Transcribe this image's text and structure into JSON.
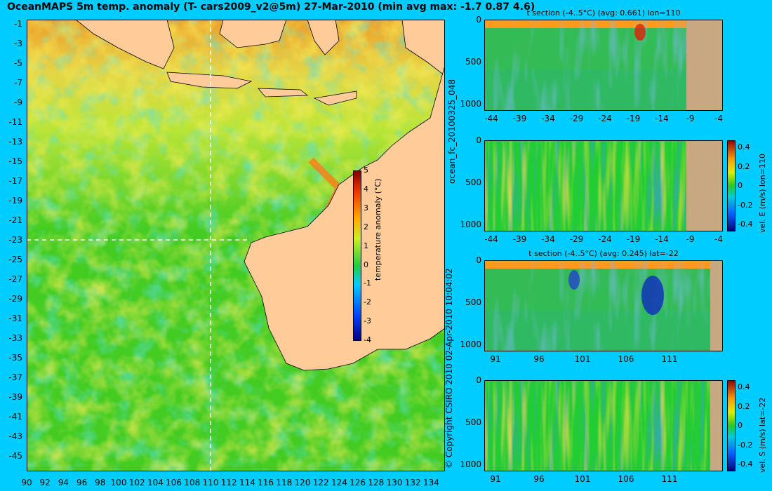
{
  "header": {
    "title": "OceanMAPS 5m temp. anomaly (T- cars2009_v2@5m) 27-Mar-2010 (min avg max: -1.7 0.87 4.6)"
  },
  "main_map": {
    "lat_ticks": [
      "-1",
      "-3",
      "-5",
      "-7",
      "-9",
      "-11",
      "-13",
      "-15",
      "-17",
      "-19",
      "-21",
      "-23",
      "-25",
      "-27",
      "-29",
      "-31",
      "-33",
      "-35",
      "-37",
      "-39",
      "-41",
      "-43",
      "-45"
    ],
    "lon_ticks": [
      "90",
      "92",
      "94",
      "96",
      "98",
      "100",
      "102",
      "104",
      "106",
      "108",
      "110",
      "112",
      "114",
      "116",
      "118",
      "120",
      "122",
      "124",
      "126",
      "128",
      "130",
      "132",
      "134"
    ],
    "colorbar": {
      "label": "temperature anomaly (°C)",
      "ticks": [
        "5",
        "4",
        "3",
        "2",
        "1",
        "0",
        "-1",
        "-2",
        "-3",
        "-4"
      ]
    }
  },
  "side_labels": {
    "copyright": "© Copyright CSIRO 2010   02-Apr-2010 10:04:02",
    "run_id": "ocean_fc_20100325_048"
  },
  "panels": [
    {
      "title": "t section (-4..5°C) (avg: 0.661) lon=110",
      "y_ticks": [
        "0",
        "500",
        "1000"
      ],
      "x_ticks": [
        "-44",
        "-39",
        "-34",
        "-29",
        "-24",
        "-19",
        "-14",
        "-9",
        "-4"
      ],
      "colorbar": null
    },
    {
      "title": "",
      "y_ticks": [
        "0",
        "500",
        "1000"
      ],
      "x_ticks": [
        "-44",
        "-39",
        "-34",
        "-29",
        "-24",
        "-19",
        "-14",
        "-9",
        "-4"
      ],
      "colorbar": {
        "label": "vel. E (m/s) lon=110",
        "ticks": [
          "0.4",
          "0.2",
          "0",
          "-0.2",
          "-0.4"
        ]
      }
    },
    {
      "title": "t section (-4..5°C) (avg: 0.245) lat=-22",
      "y_ticks": [
        "0",
        "500",
        "1000"
      ],
      "x_ticks": [
        "91",
        "96",
        "101",
        "106",
        "111"
      ],
      "colorbar": null
    },
    {
      "title": "",
      "y_ticks": [
        "0",
        "500",
        "1000"
      ],
      "x_ticks": [
        "91",
        "96",
        "101",
        "106",
        "111"
      ],
      "colorbar": {
        "label": "vel. S (m/s) lat=-22",
        "ticks": [
          "0.4",
          "0.2",
          "0",
          "-0.2",
          "-0.4"
        ]
      }
    }
  ],
  "colors": {
    "background": "#00ccff",
    "land": "#ffcc99",
    "section_land": "#c8a882",
    "ocean_base": "#44cc22"
  }
}
